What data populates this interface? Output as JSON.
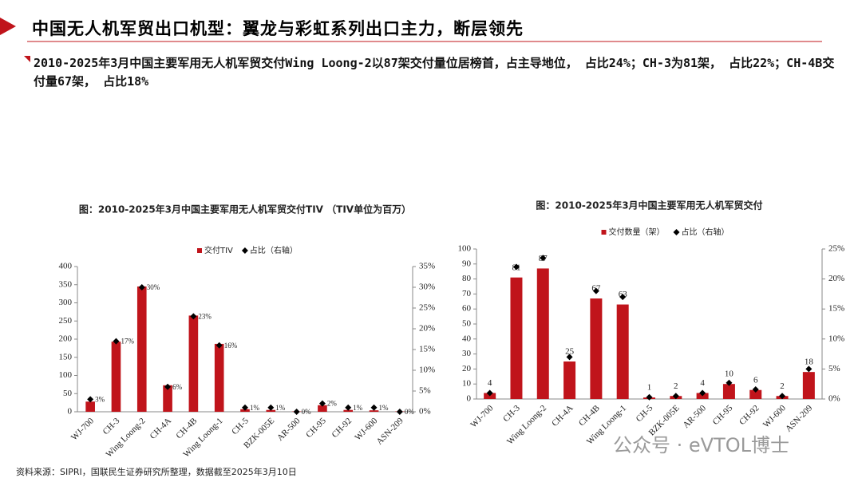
{
  "header": {
    "title": "中国无人机军贸出口机型：翼龙与彩虹系列出口主力，断层领先"
  },
  "summary": "2010-2025年3月中国主要军用无人机军贸交付Wing Loong-2以87架交付量位居榜首，占主导地位， 占比24%；CH-3为81架， 占比22%；CH-4B交付量67架， 占比18%",
  "source": "资料来源：SIPRI，国联民生证券研究所整理，数据截至2025年3月10日",
  "watermark": "公众号 · eVTOL博士",
  "chart_data": [
    {
      "type": "bar",
      "title": "图：2010-2025年3月中国主要军用无人机军贸交付TIV （TIV单位为百万）",
      "categories": [
        "WJ-700",
        "CH-3",
        "Wing Loong-2",
        "CH-4A",
        "CH-4B",
        "Wing Loong-1",
        "CH-5",
        "BZK-005E",
        "AR-500",
        "CH-95",
        "CH-92",
        "WJ-600",
        "ASN-209"
      ],
      "series": [
        {
          "name": "交付TIV",
          "type": "bar",
          "color": "#c0141b",
          "values": [
            28,
            193,
            345,
            73,
            265,
            187,
            7,
            5,
            1,
            18,
            5,
            4,
            1
          ]
        },
        {
          "name": "占比（右轴）",
          "type": "scatter",
          "axis": "y2",
          "color": "#000000",
          "values": [
            3,
            17,
            30,
            6,
            23,
            16,
            1,
            1,
            0,
            2,
            1,
            1,
            0
          ],
          "value_labels": [
            "3%",
            "17%",
            "30%",
            "6%",
            "23%",
            "16%",
            "1%",
            "1%",
            "0%",
            "2%",
            "1%",
            "1%",
            "0%"
          ]
        }
      ],
      "ylim": [
        0,
        400
      ],
      "yticks": [
        0,
        50,
        100,
        150,
        200,
        250,
        300,
        350,
        400
      ],
      "y2lim": [
        0,
        35
      ],
      "y2ticks": [
        {
          "value": 0,
          "label": "0%"
        },
        {
          "value": 5,
          "label": "5%"
        },
        {
          "value": 10,
          "label": "10%"
        },
        {
          "value": 15,
          "label": "15%"
        },
        {
          "value": 20,
          "label": "20%"
        },
        {
          "value": 25,
          "label": "25%"
        },
        {
          "value": 30,
          "label": "30%"
        },
        {
          "value": 35,
          "label": "35%"
        }
      ],
      "legend": "top"
    },
    {
      "type": "bar",
      "title": "图：2010-2025年3月中国主要军用无人机军贸交付",
      "categories": [
        "WJ-700",
        "CH-3",
        "Wing Loong-2",
        "CH-4A",
        "CH-4B",
        "Wing Loong-1",
        "CH-5",
        "BZK-005E",
        "AR-500",
        "CH-95",
        "CH-92",
        "WJ-600",
        "ASN-209"
      ],
      "series": [
        {
          "name": "交付数量（架）",
          "type": "bar",
          "color": "#c0141b",
          "show_values": true,
          "values": [
            4,
            81,
            87,
            25,
            67,
            63,
            1,
            2,
            4,
            10,
            6,
            2,
            18
          ]
        },
        {
          "name": "占比（右轴）",
          "type": "scatter",
          "axis": "y2",
          "color": "#000000",
          "values": [
            1,
            22,
            23.5,
            7,
            18,
            17,
            0.3,
            0.5,
            1,
            2.7,
            1.6,
            0.5,
            5
          ]
        }
      ],
      "ylim": [
        0,
        100
      ],
      "yticks": [
        0,
        10,
        20,
        30,
        40,
        50,
        60,
        70,
        80,
        90,
        100
      ],
      "y2lim": [
        0,
        25
      ],
      "y2ticks": [
        {
          "value": 0,
          "label": "0%"
        },
        {
          "value": 5,
          "label": "5%"
        },
        {
          "value": 10,
          "label": "10%"
        },
        {
          "value": 15,
          "label": "15%"
        },
        {
          "value": 20,
          "label": "20%"
        },
        {
          "value": 25,
          "label": "25%"
        }
      ],
      "legend": "top"
    }
  ]
}
